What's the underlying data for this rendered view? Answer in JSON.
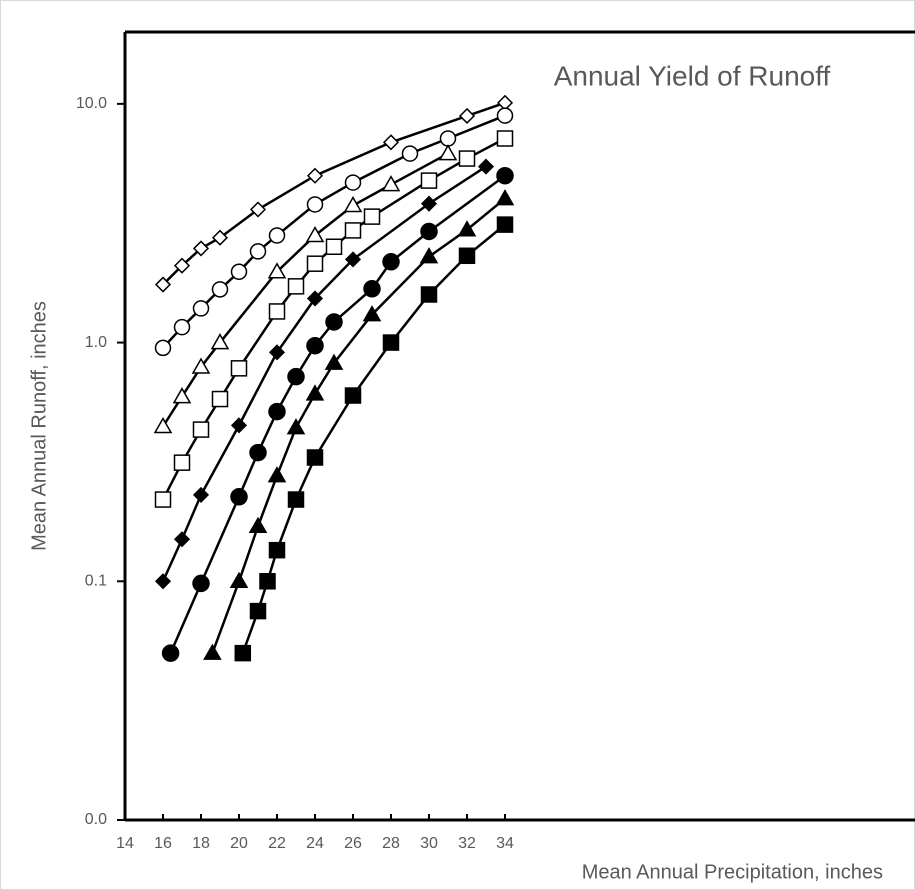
{
  "chart_data": {
    "type": "scatter-line",
    "title": "Annual Yield of Runoff",
    "x_label": "Mean Annual Precipitation, inches",
    "y_label": "Mean Annual Runoff, inches",
    "log_y": true,
    "xlim": [
      14,
      35.6
    ],
    "ylim": [
      0.01,
      20
    ],
    "xticks": [
      14,
      16,
      18,
      20,
      22,
      24,
      26,
      28,
      30,
      32,
      34
    ],
    "yticks": [
      {
        "value": 0.01,
        "label": "0.0"
      },
      {
        "value": 0.1,
        "label": "0.1"
      },
      {
        "value": 1,
        "label": "1.0"
      },
      {
        "value": 10,
        "label": "10.0"
      }
    ],
    "series": [
      {
        "marker": "diamond",
        "filled": false,
        "color": "#000000",
        "x": [
          16,
          17,
          18,
          19,
          21,
          24,
          28,
          32,
          34
        ],
        "values": [
          1.75,
          2.1,
          2.48,
          2.75,
          3.61,
          5.0,
          6.9,
          8.9,
          10.1
        ]
      },
      {
        "marker": "circle",
        "filled": false,
        "color": "#000000",
        "x": [
          16,
          17,
          18,
          19,
          20,
          21,
          22,
          24,
          26,
          29,
          31,
          34
        ],
        "values": [
          0.95,
          1.16,
          1.39,
          1.67,
          1.98,
          2.41,
          2.81,
          3.79,
          4.68,
          6.19,
          7.16,
          8.93
        ]
      },
      {
        "marker": "triangle",
        "filled": false,
        "color": "#000000",
        "x": [
          16,
          17,
          18,
          19,
          22,
          24,
          26,
          28,
          31
        ],
        "values": [
          0.445,
          0.594,
          0.79,
          1.0,
          1.98,
          2.81,
          3.75,
          4.59,
          6.19
        ]
      },
      {
        "marker": "square",
        "filled": false,
        "color": "#000000",
        "x": [
          16,
          17,
          18,
          19,
          20,
          22,
          23,
          24,
          25,
          26,
          27,
          30,
          32,
          34
        ],
        "values": [
          0.22,
          0.314,
          0.432,
          0.58,
          0.78,
          1.35,
          1.72,
          2.14,
          2.52,
          2.95,
          3.37,
          4.77,
          5.9,
          7.16
        ]
      },
      {
        "marker": "diamond",
        "filled": true,
        "color": "#000000",
        "x": [
          16,
          17,
          18,
          20,
          22,
          24,
          26,
          30,
          33
        ],
        "values": [
          0.1,
          0.15,
          0.23,
          0.45,
          0.91,
          1.53,
          2.23,
          3.82,
          5.46
        ]
      },
      {
        "marker": "circle",
        "filled": true,
        "color": "#000000",
        "x": [
          16.4,
          18,
          20,
          21,
          22,
          23,
          24,
          25,
          27,
          28,
          30,
          34
        ],
        "values": [
          0.05,
          0.098,
          0.226,
          0.346,
          0.514,
          0.72,
          0.97,
          1.22,
          1.68,
          2.18,
          2.92,
          5.0
        ]
      },
      {
        "marker": "triangle",
        "filled": true,
        "color": "#000000",
        "x": [
          18.6,
          20,
          21,
          22,
          23,
          24,
          25,
          27,
          30,
          32,
          34
        ],
        "values": [
          0.05,
          0.1,
          0.17,
          0.277,
          0.44,
          0.61,
          0.82,
          1.31,
          2.29,
          2.97,
          4.01
        ]
      },
      {
        "marker": "square",
        "filled": true,
        "color": "#000000",
        "x": [
          20.2,
          21,
          21.5,
          22,
          23,
          24,
          26,
          28,
          30,
          32,
          34
        ],
        "values": [
          0.05,
          0.075,
          0.1,
          0.135,
          0.22,
          0.33,
          0.6,
          1.0,
          1.59,
          2.31,
          3.12
        ]
      }
    ]
  }
}
